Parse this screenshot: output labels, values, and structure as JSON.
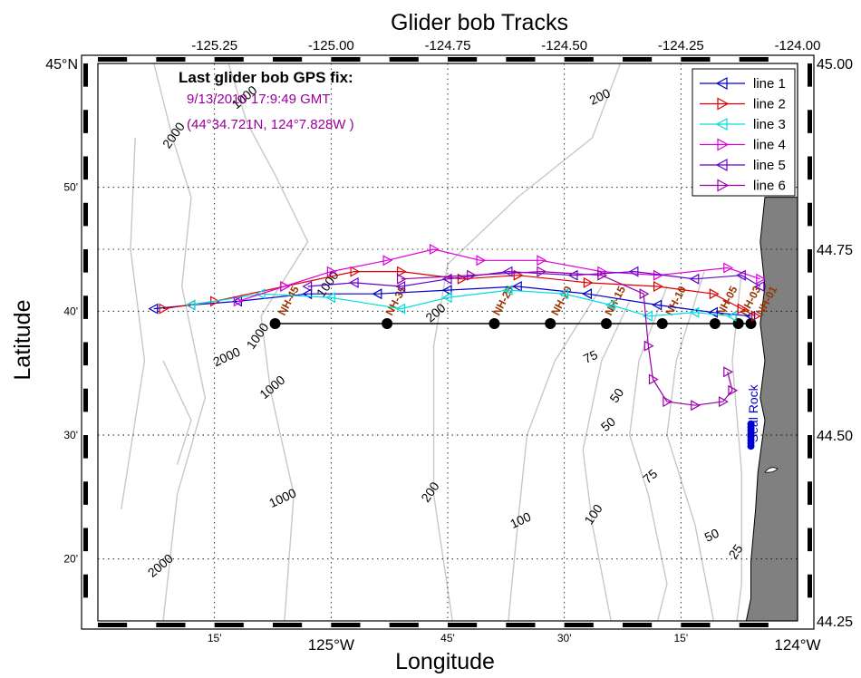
{
  "title": "Glider bob Tracks",
  "x_axis": {
    "label": "Longitude",
    "top_ticks": [
      {
        "lon": -125.25,
        "label": "-125.25"
      },
      {
        "lon": -125.0,
        "label": "-125.00"
      },
      {
        "lon": -124.75,
        "label": "-124.75"
      },
      {
        "lon": -124.5,
        "label": "-124.50"
      },
      {
        "lon": -124.25,
        "label": "-124.25"
      },
      {
        "lon": -124.0,
        "label": "-124.00"
      }
    ],
    "bottom_ticks": [
      {
        "lon": -125.25,
        "label": "15'"
      },
      {
        "lon": -125.0,
        "label": "125°W"
      },
      {
        "lon": -124.75,
        "label": "45'"
      },
      {
        "lon": -124.5,
        "label": "30'"
      },
      {
        "lon": -124.25,
        "label": "15'"
      },
      {
        "lon": -124.0,
        "label": "124°W"
      }
    ],
    "range": [
      -125.5,
      -124.0
    ]
  },
  "y_axis": {
    "label": "Latitude",
    "left_ticks": [
      {
        "lat": 45.0,
        "label": "45°N"
      },
      {
        "lat": 44.8333,
        "label": "50'"
      },
      {
        "lat": 44.6667,
        "label": "40'"
      },
      {
        "lat": 44.5,
        "label": "30'"
      },
      {
        "lat": 44.3333,
        "label": "20'"
      }
    ],
    "right_ticks": [
      {
        "lat": 45.0,
        "label": "45.00"
      },
      {
        "lat": 44.75,
        "label": "44.75"
      },
      {
        "lat": 44.5,
        "label": "44.50"
      },
      {
        "lat": 44.25,
        "label": "44.25"
      }
    ],
    "range": [
      44.25,
      45.0
    ]
  },
  "gps_fix": {
    "heading": "Last glider bob GPS fix:",
    "time": "9/13/2010 17:9:49 GMT",
    "position": "(44°34.721N, 124°7.828W )"
  },
  "legend": [
    {
      "label": "line 1",
      "color": "#0000cc",
      "marker": "left-triangle"
    },
    {
      "label": "line 2",
      "color": "#dd0000",
      "marker": "right-triangle"
    },
    {
      "label": "line 3",
      "color": "#00dddd",
      "marker": "left-triangle"
    },
    {
      "label": "line 4",
      "color": "#dd00dd",
      "marker": "right-triangle"
    },
    {
      "label": "line 5",
      "color": "#6600cc",
      "marker": "left-triangle"
    },
    {
      "label": "line 6",
      "color": "#9900aa",
      "marker": "right-triangle"
    }
  ],
  "stations": {
    "lat": 44.65,
    "lons": [
      -125.12,
      -124.88,
      -124.65,
      -124.53,
      -124.41,
      -124.29,
      -124.177,
      -124.127,
      -124.1
    ],
    "labels": [
      {
        "text": "NH-45",
        "lon": -125.1
      },
      {
        "text": "NH-35",
        "lon": -124.87
      },
      {
        "text": "NH-25",
        "lon": -124.64
      },
      {
        "text": "NH-20",
        "lon": -124.515
      },
      {
        "text": "NH-15",
        "lon": -124.4
      },
      {
        "text": "NH-10",
        "lon": -124.27
      },
      {
        "text": "NH-05",
        "lon": -124.16
      },
      {
        "text": "NH-03",
        "lon": -124.11
      },
      {
        "text": "NH-01",
        "lon": -124.075
      }
    ]
  },
  "landmark": {
    "label": "Seal Rock"
  },
  "contour_labels": [
    {
      "text": "2000",
      "lon": -125.33,
      "lat": 44.9
    },
    {
      "text": "1000",
      "lon": -125.18,
      "lat": 44.95
    },
    {
      "text": "200",
      "lon": -124.42,
      "lat": 44.95
    },
    {
      "text": "1000",
      "lon": -125.0,
      "lat": 44.7
    },
    {
      "text": "200",
      "lon": -124.77,
      "lat": 44.66
    },
    {
      "text": "2000",
      "lon": -125.22,
      "lat": 44.6
    },
    {
      "text": "1000",
      "lon": -125.15,
      "lat": 44.63
    },
    {
      "text": "1000",
      "lon": -125.12,
      "lat": 44.56
    },
    {
      "text": "75",
      "lon": -124.44,
      "lat": 44.6
    },
    {
      "text": "50",
      "lon": -124.38,
      "lat": 44.55
    },
    {
      "text": "50",
      "lon": -124.4,
      "lat": 44.51
    },
    {
      "text": "1000",
      "lon": -125.1,
      "lat": 44.41
    },
    {
      "text": "200",
      "lon": -124.78,
      "lat": 44.42
    },
    {
      "text": "75",
      "lon": -124.31,
      "lat": 44.44
    },
    {
      "text": "100",
      "lon": -124.59,
      "lat": 44.38
    },
    {
      "text": "100",
      "lon": -124.43,
      "lat": 44.39
    },
    {
      "text": "2000",
      "lon": -125.36,
      "lat": 44.32
    },
    {
      "text": "50",
      "lon": -124.18,
      "lat": 44.36
    },
    {
      "text": "25",
      "lon": -124.125,
      "lat": 44.34
    }
  ],
  "colors": {
    "land": "#808080",
    "contour": "#c8c8c8",
    "station": "#000000",
    "station_label": "#993300",
    "gps_text": "#990099",
    "landmark": "#0000cc"
  }
}
